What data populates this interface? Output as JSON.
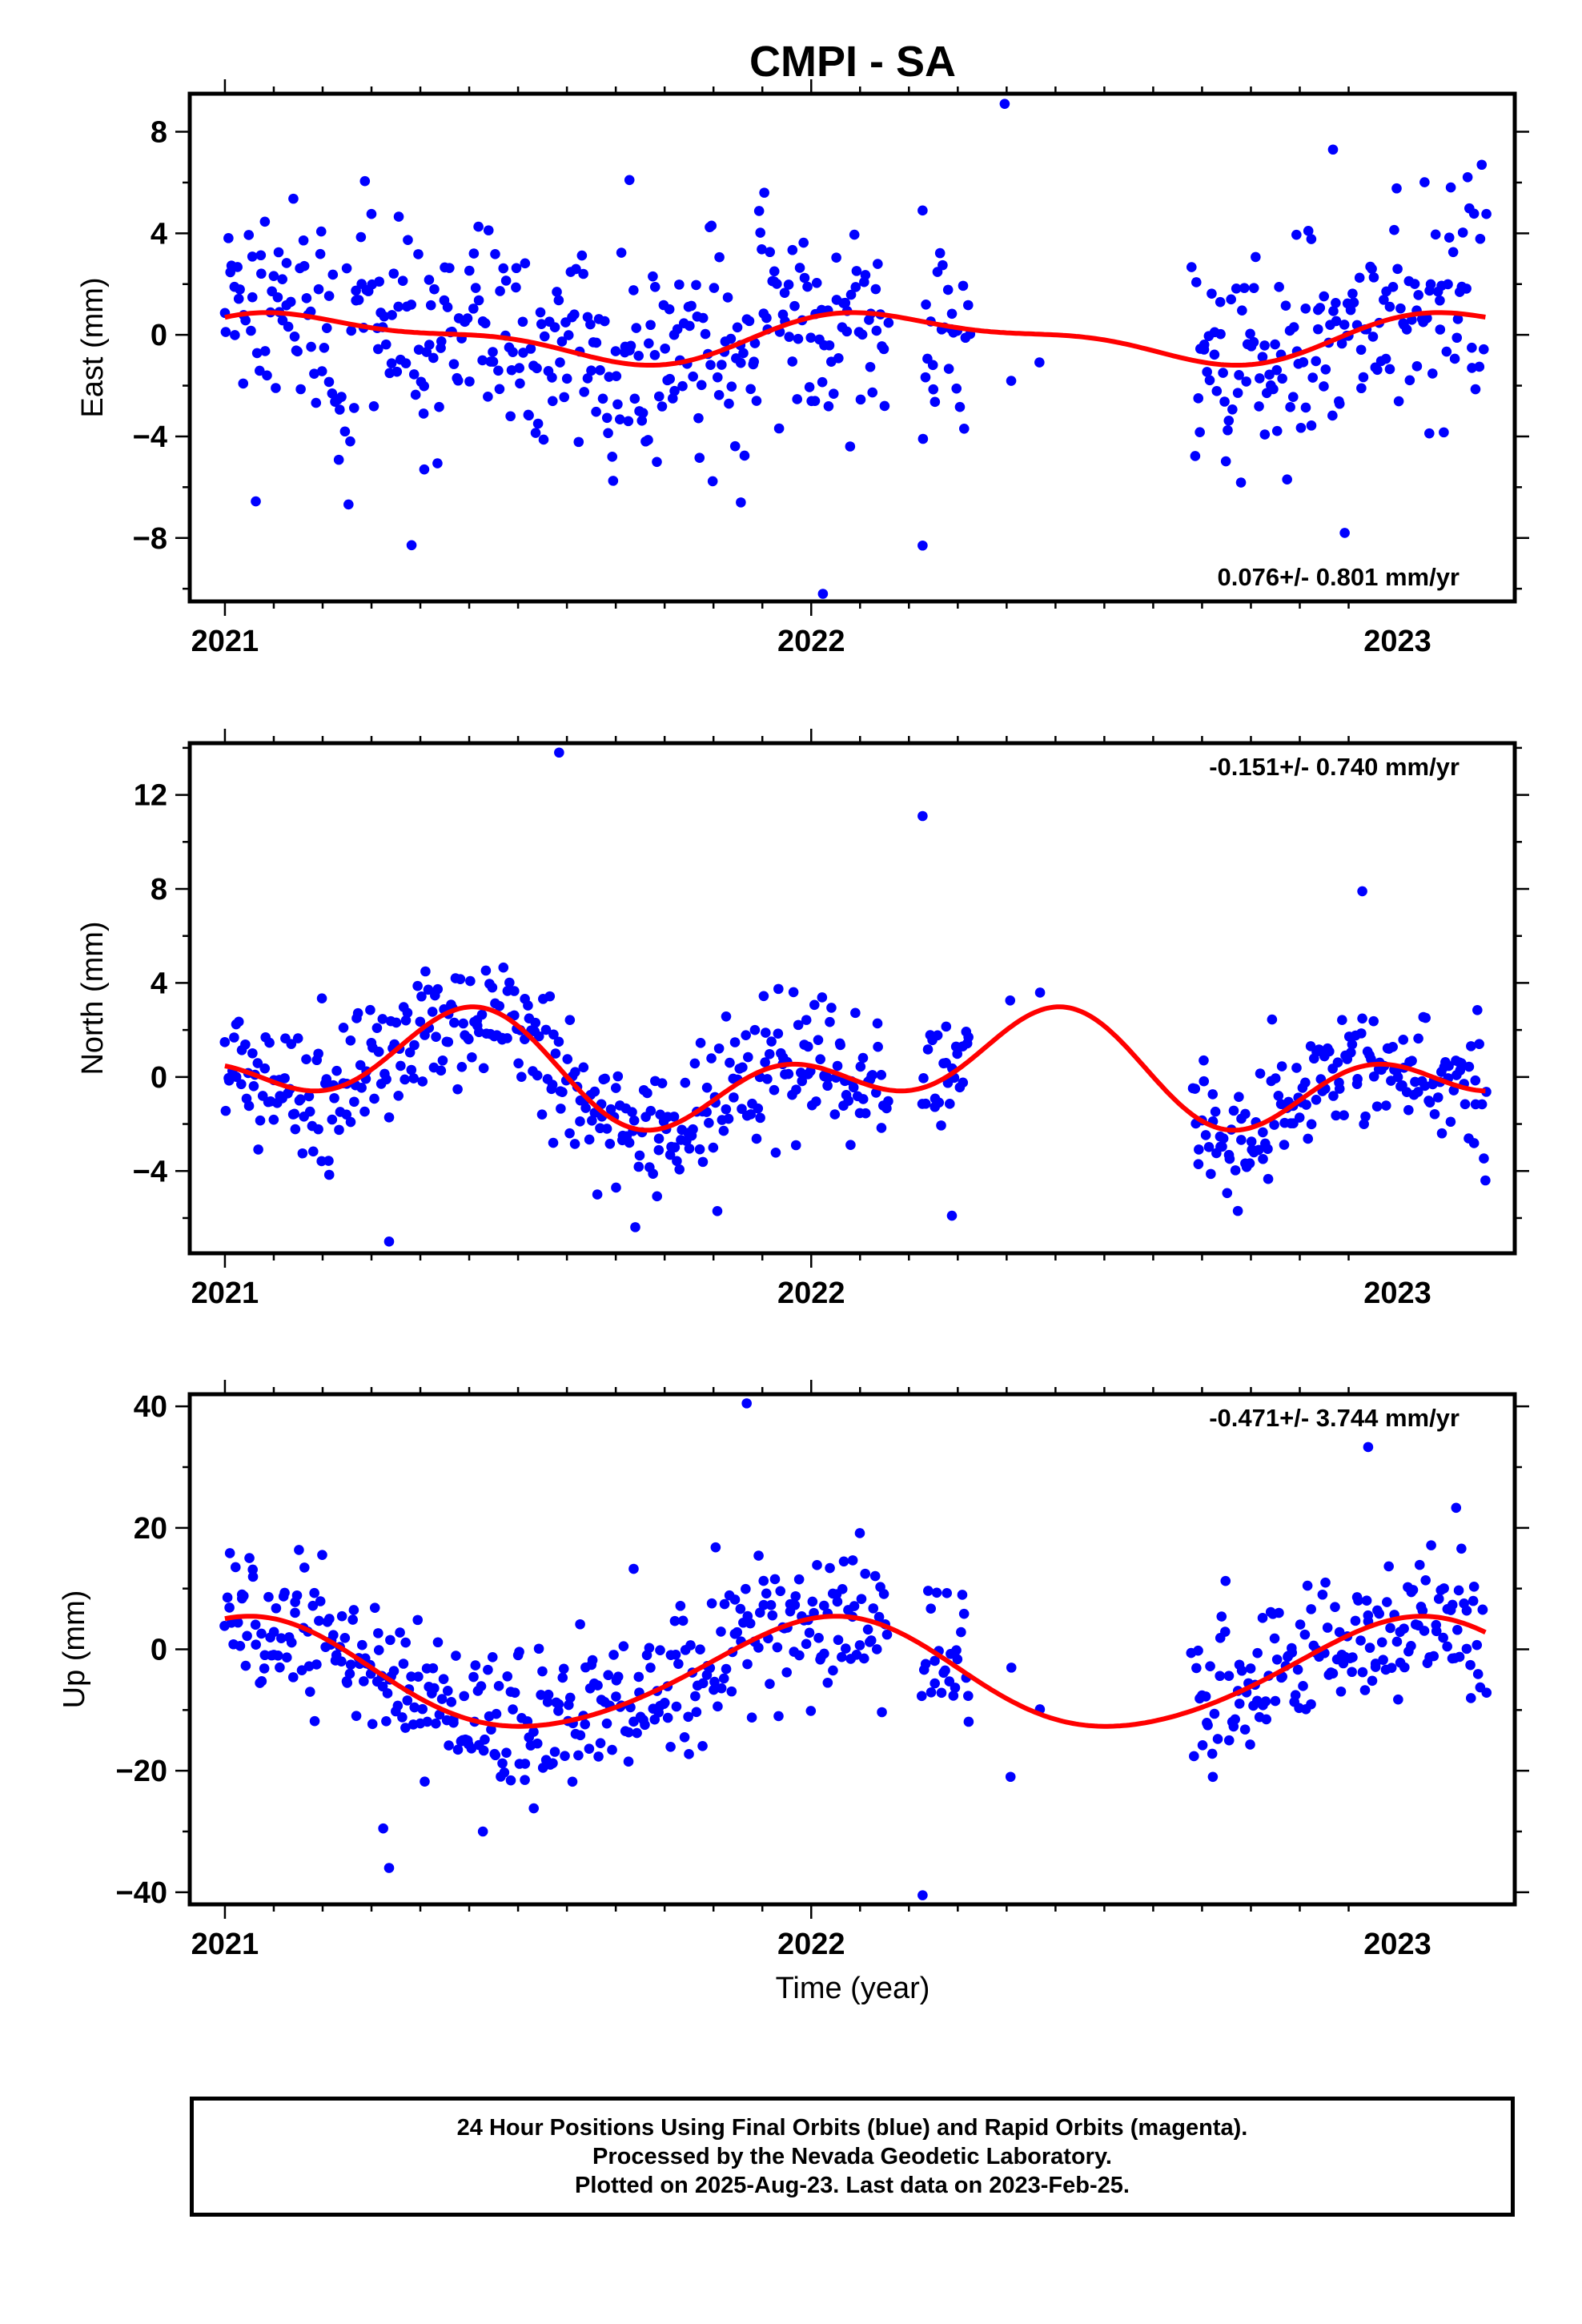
{
  "chart_data": {
    "title": "CMPI - SA",
    "type": "scatter",
    "xlabel": "Time (year)",
    "xlim": [
      2020.94,
      2023.2
    ],
    "x_tick_labels": [
      "2021",
      "2022",
      "2023"
    ],
    "x_ticks": [
      2021,
      2022,
      2023
    ],
    "panels": [
      {
        "ylabel": "East (mm)",
        "ylim": [
          -10.5,
          9.5
        ],
        "y_ticks": [
          -8,
          -4,
          0,
          4,
          8
        ],
        "y_tick_labels": [
          "−8",
          "−4",
          "0",
          "4",
          "8"
        ],
        "rate_text": "0.076+/- 0.801 mm/yr",
        "rate_position": "bottom-right",
        "model": {
          "offset": -0.1,
          "amp1": 0.85,
          "phase1": 0.55,
          "amp2": 0.35,
          "phase2": 1.4
        },
        "scatter": 2.3,
        "outliers": [
          [
            2021.34,
            -5.3
          ],
          [
            2021.69,
            6.1
          ],
          [
            2021.83,
            4.3
          ],
          [
            2021.88,
            -6.6
          ],
          [
            2021.92,
            5.6
          ],
          [
            2022.02,
            -10.2
          ],
          [
            2022.19,
            4.9
          ],
          [
            2022.19,
            -8.3
          ],
          [
            2022.33,
            9.1
          ],
          [
            2022.89,
            7.3
          ],
          [
            2022.91,
            -7.8
          ]
        ]
      },
      {
        "ylabel": "North (mm)",
        "ylim": [
          -7.5,
          14.2
        ],
        "y_ticks": [
          -4,
          0,
          4,
          8,
          12
        ],
        "y_tick_labels": [
          "−4",
          "0",
          "4",
          "8",
          "12"
        ],
        "rate_text": "-0.151+/- 0.740 mm/yr",
        "rate_position": "top-right",
        "model": {
          "offset": 0.2,
          "amp1": 1.5,
          "phase1": -0.6,
          "amp2": 1.5,
          "phase2": 2.3
        },
        "scatter": 1.4,
        "outliers": [
          [
            2021.28,
            -7.0
          ],
          [
            2021.57,
            13.8
          ],
          [
            2021.56,
            -2.8
          ],
          [
            2022.19,
            11.1
          ],
          [
            2022.24,
            -5.9
          ],
          [
            2022.94,
            7.9
          ],
          [
            2023.15,
            -4.4
          ]
        ]
      },
      {
        "ylabel": "Up (mm)",
        "ylim": [
          -42,
          42
        ],
        "y_ticks": [
          -40,
          -20,
          0,
          20,
          40
        ],
        "y_tick_labels": [
          "−40",
          "−20",
          "0",
          "20",
          "40"
        ],
        "rate_text": "-0.471+/- 3.744 mm/yr",
        "rate_position": "top-right",
        "model": {
          "offset": -4.2,
          "amp1": 9.0,
          "phase1": 1.4,
          "amp2": 0.8,
          "phase2": 0.5
        },
        "scatter": 6.0,
        "outliers": [
          [
            2021.28,
            -36.0
          ],
          [
            2021.27,
            -29.5
          ],
          [
            2021.44,
            -30.0
          ],
          [
            2021.89,
            40.5
          ],
          [
            2022.19,
            -40.5
          ],
          [
            2022.34,
            -21.0
          ],
          [
            2022.95,
            33.3
          ],
          [
            2023.1,
            23.3
          ]
        ]
      }
    ],
    "data_segments": [
      [
        2021.0,
        2022.13
      ],
      [
        2022.19,
        2022.27
      ],
      [
        2022.34,
        2022.34
      ],
      [
        2022.39,
        2022.39
      ],
      [
        2022.65,
        2023.15
      ]
    ],
    "series": [
      {
        "name": "Final Orbits",
        "color": "#0000ff"
      },
      {
        "name": "model fit",
        "color": "#ff0000"
      }
    ]
  },
  "footer": {
    "line1": "24 Hour Positions Using Final Orbits (blue) and Rapid Orbits (magenta).",
    "line2": "Processed by the Nevada Geodetic Laboratory.",
    "line3": "Plotted on 2025-Aug-23. Last data on 2023-Feb-25."
  }
}
